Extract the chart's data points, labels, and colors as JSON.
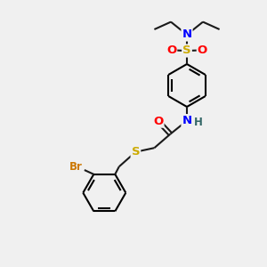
{
  "bg_color": "#f0f0f0",
  "bond_color": "#1a1a1a",
  "N_color": "#0000ff",
  "O_color": "#ff0000",
  "S_color": "#ccaa00",
  "Br_color": "#cc7700",
  "H_color": "#336666",
  "lw": 1.5,
  "fs": 9.5,
  "sfs": 8.5,
  "xlim": [
    0,
    10
  ],
  "ylim": [
    0,
    10
  ]
}
